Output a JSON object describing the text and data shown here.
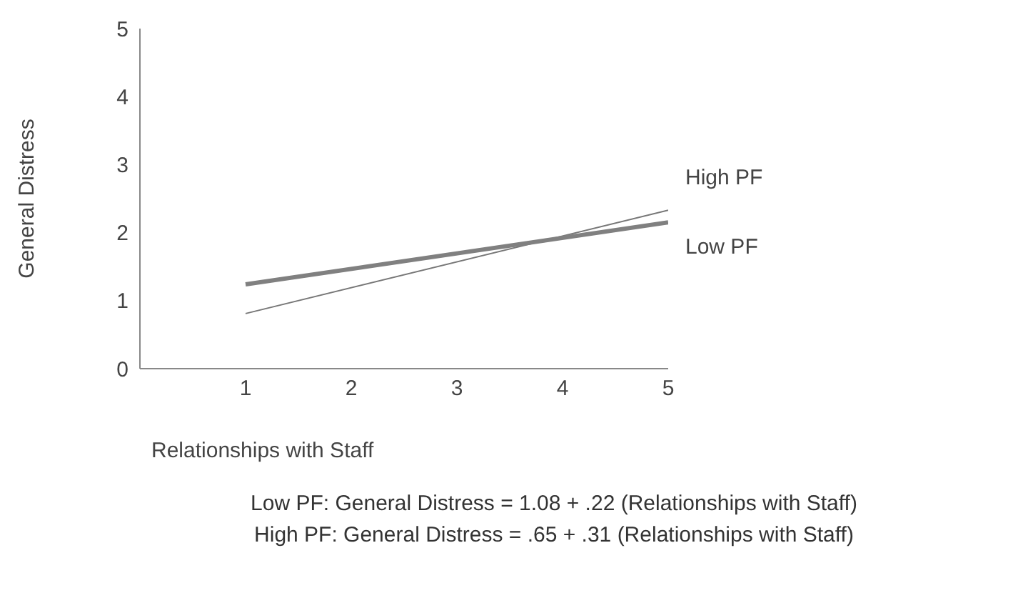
{
  "chart_data": {
    "type": "line",
    "xlabel": "Relationships with Staff",
    "ylabel": "General Distress",
    "x": [
      1,
      5
    ],
    "series": [
      {
        "name": "High PF",
        "color": "#777777",
        "values": [
          0.81,
          2.33
        ]
      },
      {
        "name": "Low PF",
        "color": "#808080",
        "values": [
          1.24,
          2.15
        ]
      }
    ],
    "xlim": [
      0,
      5
    ],
    "xticks": [
      1,
      2,
      3,
      4,
      5
    ],
    "ylim": [
      0,
      5
    ],
    "yticks": [
      0,
      1,
      2,
      3,
      4,
      5
    ],
    "grid": false,
    "legend": false,
    "marker": "none",
    "line_style": "solid",
    "annotations": [
      "Low PF: General Distress = 1.08 + .22 (Relationships with Staff)",
      "High PF: General Distress = .65 + .31 (Relationships with Staff)"
    ]
  }
}
